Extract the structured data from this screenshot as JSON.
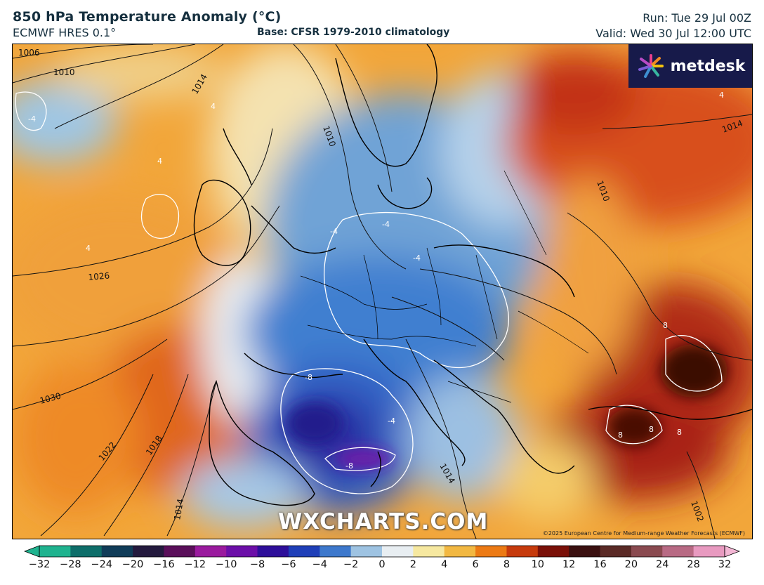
{
  "header": {
    "title": "850 hPa Temperature Anomaly (°C)",
    "model": "ECMWF HRES 0.1°",
    "base": "Base: CFSR 1979-2010 climatology",
    "run": "Run: Tue 29 Jul 00Z",
    "valid": "Valid: Wed 30 Jul 12:00 UTC"
  },
  "logo": {
    "text": "metdesk",
    "icon": "flower-burst-icon"
  },
  "watermark": "WXCHARTS.COM",
  "copyright": "©2025 European Centre for Medium-range Weather Forecasts (ECMWF)",
  "isobar_labels": [
    "1006",
    "1010",
    "1014",
    "1010",
    "1026",
    "1030",
    "1022",
    "1018",
    "1014",
    "1014",
    "1010",
    "1014",
    "1002"
  ],
  "anomaly_labels": [
    "-4",
    "4",
    "-4",
    "-4",
    "-8",
    "-8",
    "-4",
    "-4",
    "4",
    "4",
    "8",
    "8",
    "8",
    "8",
    "4"
  ],
  "colorbar": {
    "ticks": [
      "−32",
      "−28",
      "−24",
      "−20",
      "−16",
      "−12",
      "−10",
      "−8",
      "−6",
      "−4",
      "−2",
      "0",
      "2",
      "4",
      "6",
      "8",
      "10",
      "12",
      "16",
      "20",
      "24",
      "28",
      "32"
    ],
    "colors": [
      "#1fb38f",
      "#0e6e6a",
      "#103c58",
      "#241a3e",
      "#5a0f5a",
      "#9a1a9e",
      "#6c0fa8",
      "#2e0f9a",
      "#1f3fb8",
      "#3d78cc",
      "#9ec3e2",
      "#e8eef2",
      "#f6e8a0",
      "#f2b842",
      "#ec7a14",
      "#c63a0c",
      "#7a1008",
      "#3a1010",
      "#5a2a26",
      "#8a4a50",
      "#b86a84",
      "#e89ac0"
    ]
  }
}
